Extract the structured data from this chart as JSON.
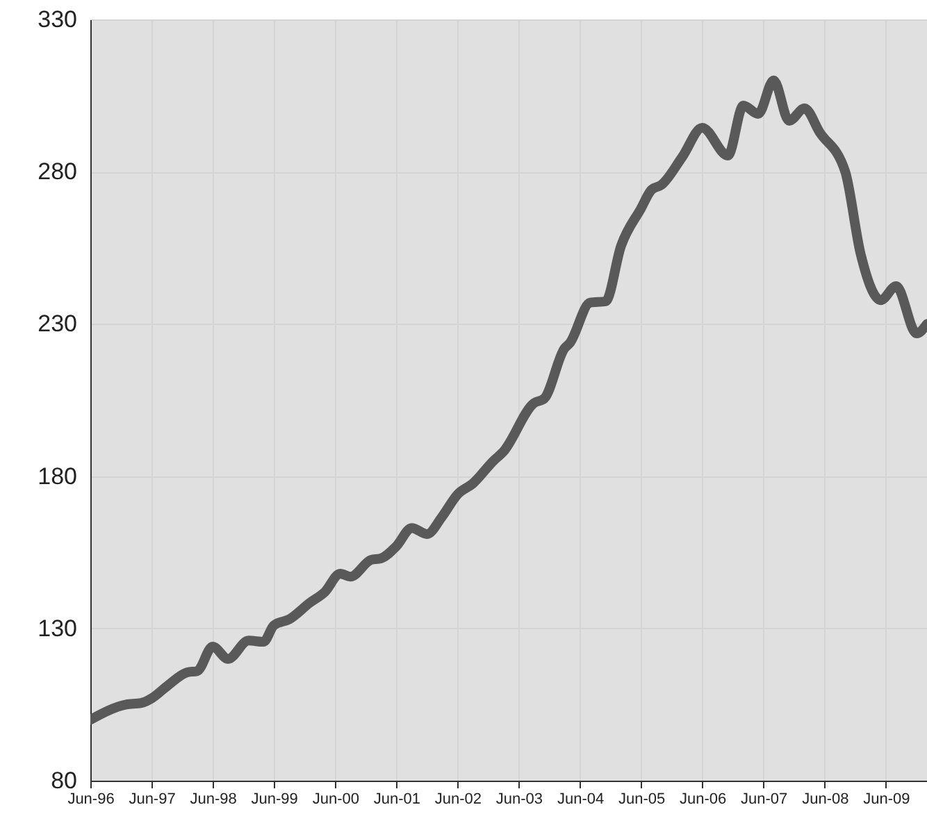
{
  "chart_data": {
    "type": "line",
    "grid": true,
    "marker": "none",
    "line_style": "solid",
    "x": [
      "1996-06",
      "1997-01",
      "1997-04",
      "1997-06",
      "1997-09",
      "1998-01",
      "1998-03",
      "1998-06",
      "1998-09",
      "1999-01",
      "1999-04",
      "1999-06",
      "1999-09",
      "2000-01",
      "2000-04",
      "2000-07",
      "2000-09",
      "2001-01",
      "2001-03",
      "2001-06",
      "2001-09",
      "2001-12",
      "2002-03",
      "2002-06",
      "2002-09",
      "2003-01",
      "2003-03",
      "2003-09",
      "2003-11",
      "2004-03",
      "2004-04",
      "2004-08",
      "2004-11",
      "2005-02",
      "2005-06",
      "2005-08",
      "2005-10",
      "2006-02",
      "2006-06",
      "2006-11",
      "2007-02",
      "2007-05",
      "2007-08",
      "2007-11",
      "2008-02",
      "2008-05",
      "2008-10",
      "2009-01",
      "2009-05",
      "2009-08",
      "2009-12",
      "2010-02"
    ],
    "series": [
      {
        "color": "#595959",
        "values": [
          100,
          105,
          105.5,
          107,
          111,
          115.6,
          116,
          124,
          120,
          126,
          125.6,
          131,
          133,
          138.4,
          142,
          148,
          147,
          152.5,
          153,
          157,
          163,
          161,
          166.7,
          174,
          177.6,
          185,
          188,
          204,
          205.5,
          222,
          223.7,
          237,
          237.4,
          255.6,
          268,
          274,
          275.7,
          284.8,
          294.4,
          285.3,
          301.7,
          299,
          310,
          296.7,
          300.8,
          293,
          280,
          253,
          237.8,
          242.4,
          226.9,
          230
        ]
      }
    ],
    "xlim": [
      "1996-06",
      "2010-02"
    ],
    "xticks": [
      {
        "value": "1996-06",
        "label": "Jun-96"
      },
      {
        "value": "1997-06",
        "label": "Jun-97"
      },
      {
        "value": "1998-06",
        "label": "Jun-98"
      },
      {
        "value": "1999-06",
        "label": "Jun-99"
      },
      {
        "value": "2000-06",
        "label": "Jun-00"
      },
      {
        "value": "2001-06",
        "label": "Jun-01"
      },
      {
        "value": "2002-06",
        "label": "Jun-02"
      },
      {
        "value": "2003-06",
        "label": "Jun-03"
      },
      {
        "value": "2004-06",
        "label": "Jun-04"
      },
      {
        "value": "2005-06",
        "label": "Jun-05"
      },
      {
        "value": "2006-06",
        "label": "Jun-06"
      },
      {
        "value": "2007-06",
        "label": "Jun-07"
      },
      {
        "value": "2008-06",
        "label": "Jun-08"
      },
      {
        "value": "2009-06",
        "label": "Jun-09"
      }
    ],
    "ylim": [
      80,
      330
    ],
    "yticks": [
      80,
      130,
      180,
      230,
      280,
      330
    ]
  }
}
